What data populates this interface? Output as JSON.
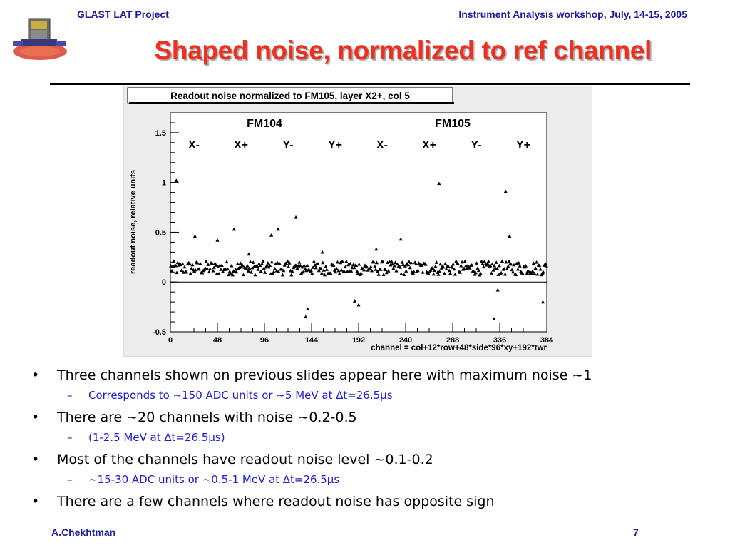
{
  "header": {
    "left": "GLAST LAT Project",
    "right": "Instrument Analysis workshop, July, 14-15, 2005"
  },
  "slide_title": "Shaped noise, normalized to ref channel",
  "chart_data": {
    "type": "scatter",
    "title": "Readout noise normalized to FM105, layer X2+, col 5",
    "xlabel": "channel = col+12*row+48*side*96*xy+192*twr",
    "ylabel": "readout noise, relative units",
    "xlim": [
      0,
      384
    ],
    "ylim": [
      -0.5,
      1.7
    ],
    "xticks": [
      0,
      48,
      96,
      144,
      192,
      240,
      288,
      336,
      384
    ],
    "yticks": [
      -0.5,
      0,
      0.5,
      1,
      1.5
    ],
    "ytick_labels": [
      "-0.5",
      "0",
      "0.5",
      "1",
      "1.5"
    ],
    "zero_line": true,
    "group_labels": [
      {
        "text": "FM104",
        "x": 96
      },
      {
        "text": "FM105",
        "x": 288
      }
    ],
    "section_labels": [
      {
        "text": "X-",
        "x": 24
      },
      {
        "text": "X+",
        "x": 72
      },
      {
        "text": "Y-",
        "x": 120
      },
      {
        "text": "Y+",
        "x": 168
      },
      {
        "text": "X-",
        "x": 216
      },
      {
        "text": "X+",
        "x": 264
      },
      {
        "text": "Y-",
        "x": 312
      },
      {
        "text": "Y+",
        "x": 360
      }
    ],
    "marker": "triangle",
    "outlier_points": [
      [
        6,
        1.02
      ],
      [
        25,
        0.46
      ],
      [
        48,
        0.42
      ],
      [
        65,
        0.53
      ],
      [
        103,
        0.47
      ],
      [
        110,
        0.53
      ],
      [
        128,
        0.65
      ],
      [
        138,
        -0.35
      ],
      [
        140,
        -0.27
      ],
      [
        188,
        -0.19
      ],
      [
        192,
        -0.23
      ],
      [
        235,
        0.43
      ],
      [
        274,
        0.99
      ],
      [
        330,
        -0.37
      ],
      [
        334,
        -0.08
      ],
      [
        342,
        0.91
      ],
      [
        346,
        0.46
      ],
      [
        380,
        -0.2
      ],
      [
        80,
        0.28
      ],
      [
        155,
        0.3
      ],
      [
        210,
        0.33
      ]
    ],
    "baseline": {
      "n": 384,
      "center": 0.14,
      "spread": 0.07
    }
  },
  "bullets": [
    {
      "text": "Three channels shown on previous slides appear here with maximum noise ~1",
      "sub": "Corresponds to ~150 ADC units or ~5 MeV at ∆t=26.5µs"
    },
    {
      "text": "There are ~20 channels with noise ~0.2-0.5",
      "sub": "(1-2.5 MeV at ∆t=26.5µs)"
    },
    {
      "text": "Most of the channels have readout noise level ~0.1-0.2",
      "sub": "~15-30 ADC units or ~0.5-1 MeV at ∆t=26.5µs"
    },
    {
      "text": "There are a few channels where readout noise has opposite sign",
      "sub": ""
    }
  ],
  "footer": {
    "author": "A.Chekhtman",
    "page": "7"
  },
  "colors": {
    "header_blue": "#1c1c9c",
    "title_red": "#ee3020",
    "sub_bullet_blue": "#1c1cd0",
    "plot_bg": "#ececec"
  }
}
